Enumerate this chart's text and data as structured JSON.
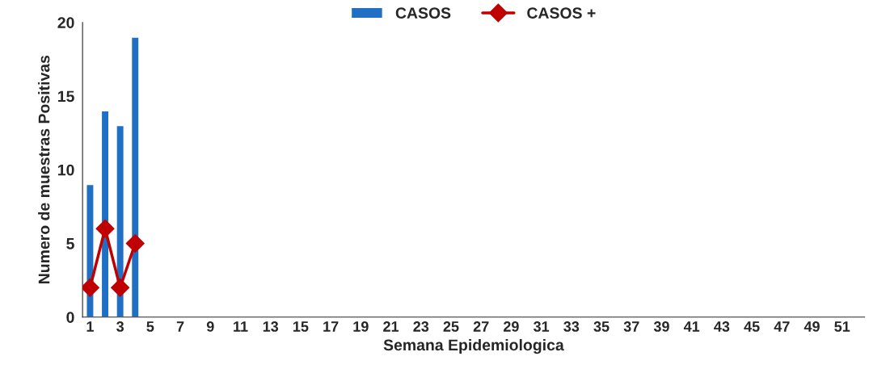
{
  "chart_data": {
    "type": "bar",
    "categories": [
      "1",
      null,
      "3",
      null,
      "5",
      null,
      "7",
      null,
      "9",
      null,
      "11",
      null,
      "13",
      null,
      "15",
      null,
      "17",
      null,
      "19",
      null,
      "21",
      null,
      "23",
      null,
      "25",
      null,
      "27",
      null,
      "29",
      null,
      "31",
      null,
      "33",
      null,
      "35",
      null,
      "37",
      null,
      "39",
      null,
      "41",
      null,
      "43",
      null,
      "45",
      null,
      "47",
      null,
      "49",
      null,
      "51",
      null
    ],
    "series": [
      {
        "name": "CASOS",
        "color": "#1f6fc4",
        "values": [
          9,
          14,
          13,
          19,
          null,
          null,
          null,
          null,
          null,
          null,
          null,
          null,
          null,
          null,
          null,
          null,
          null,
          null,
          null,
          null,
          null,
          null,
          null,
          null,
          null,
          null,
          null,
          null,
          null,
          null,
          null,
          null,
          null,
          null,
          null,
          null,
          null,
          null,
          null,
          null,
          null,
          null,
          null,
          null,
          null,
          null,
          null,
          null,
          null,
          null,
          null,
          null
        ]
      },
      {
        "name": "CASOS +",
        "type": "line",
        "color": "#c00000",
        "marker": "diamond",
        "values": [
          2,
          6,
          2,
          5,
          null,
          null,
          null,
          null,
          null,
          null,
          null,
          null,
          null,
          null,
          null,
          null,
          null,
          null,
          null,
          null,
          null,
          null,
          null,
          null,
          null,
          null,
          null,
          null,
          null,
          null,
          null,
          null,
          null,
          null,
          null,
          null,
          null,
          null,
          null,
          null,
          null,
          null,
          null,
          null,
          null,
          null,
          null,
          null,
          null,
          null,
          null,
          null
        ]
      }
    ],
    "xlabel": "Semana Epidemiologica",
    "ylabel": "Numero de muestras Positivas",
    "ylim": [
      0,
      20
    ],
    "yticks": [
      0,
      5,
      10,
      15,
      20
    ],
    "grid": false,
    "legend": "top"
  }
}
